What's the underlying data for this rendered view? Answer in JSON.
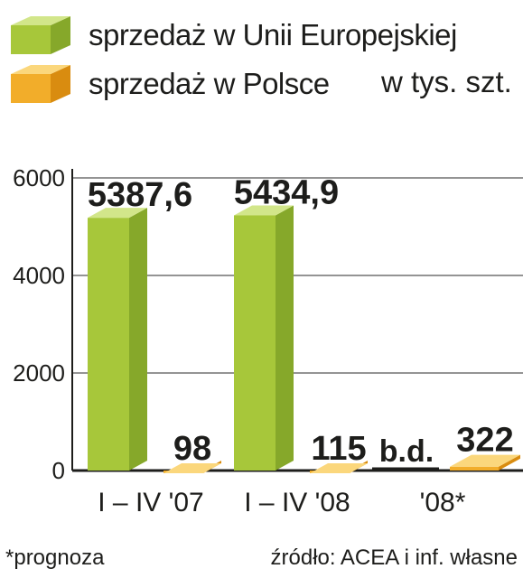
{
  "colors": {
    "eu_front": "#a7c73a",
    "eu_side": "#86a82a",
    "eu_top": "#d2e68a",
    "pl_front": "#f2ad2a",
    "pl_side": "#d98c10",
    "pl_top": "#fbd77c",
    "grid": "#555555",
    "axis": "#1d1d1b"
  },
  "legend": {
    "eu_label": "sprzedaż w Unii Europejskiej",
    "pl_label": "sprzedaż w Polsce",
    "unit": "w tys. szt."
  },
  "footnote": "*prognoza",
  "source": "źródło: ACEA i inf. własne",
  "chart_data": {
    "type": "bar",
    "categories": [
      "I – IV '07",
      "I – IV '08",
      "'08*"
    ],
    "series": [
      {
        "name": "sprzedaż w Unii Europejskiej",
        "values": [
          5387.6,
          5434.9,
          null
        ],
        "labels": [
          "5387,6",
          "5434,9",
          "b.d."
        ]
      },
      {
        "name": "sprzedaż w Polsce",
        "values": [
          98,
          115,
          322
        ],
        "labels": [
          "98",
          "115",
          "322"
        ]
      }
    ],
    "yticks": [
      0,
      2000,
      4000,
      6000
    ],
    "ylim": [
      0,
      6000
    ],
    "grid": true,
    "legend_position": "top"
  }
}
